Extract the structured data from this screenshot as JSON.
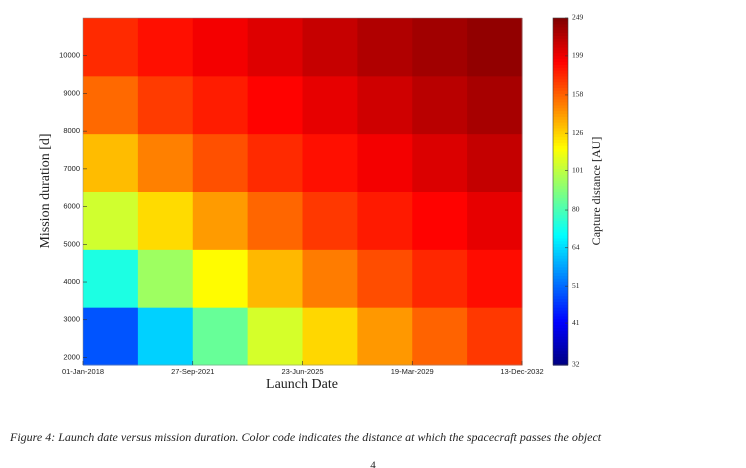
{
  "chart_data": {
    "type": "heatmap",
    "xlabel": "Launch Date",
    "ylabel": "Mission duration [d]",
    "xlim": [
      "2018-01-01",
      "2032-12-13"
    ],
    "xticks": [
      {
        "value": "2018-01-01",
        "label": "01-Jan-2018"
      },
      {
        "value": "2021-09-27",
        "label": "27-Sep-2021"
      },
      {
        "value": "2025-06-23",
        "label": "23-Jun-2025"
      },
      {
        "value": "2029-03-19",
        "label": "19-Mar-2029"
      },
      {
        "value": "2032-12-13",
        "label": "13-Dec-2032"
      }
    ],
    "ylim": [
      1800,
      11000
    ],
    "yticks": [
      2000,
      3000,
      4000,
      5000,
      6000,
      7000,
      8000,
      9000,
      10000
    ],
    "z": [
      [
        49,
        63,
        85,
        106,
        125,
        142,
        158,
        172
      ],
      [
        73,
        95,
        116,
        133,
        150,
        165,
        178,
        188
      ],
      [
        105,
        124,
        141,
        157,
        172,
        183,
        192,
        202
      ],
      [
        132,
        149,
        164,
        177,
        187,
        197,
        207,
        217
      ],
      [
        156,
        171,
        182,
        192,
        202,
        212,
        222,
        230
      ],
      [
        177,
        187,
        197,
        206,
        216,
        226,
        233,
        240
      ]
    ],
    "colorbar": {
      "label": "Capture distance [AU]",
      "colormap": "jet",
      "log": true,
      "lim": [
        32,
        249
      ],
      "ticks": [
        32,
        41,
        51,
        64,
        80,
        101,
        126,
        158,
        199,
        249
      ]
    }
  },
  "caption": "Figure 4: Launch date versus mission duration. Color code indicates the distance at which the spacecraft passes the object",
  "page_number": "4"
}
